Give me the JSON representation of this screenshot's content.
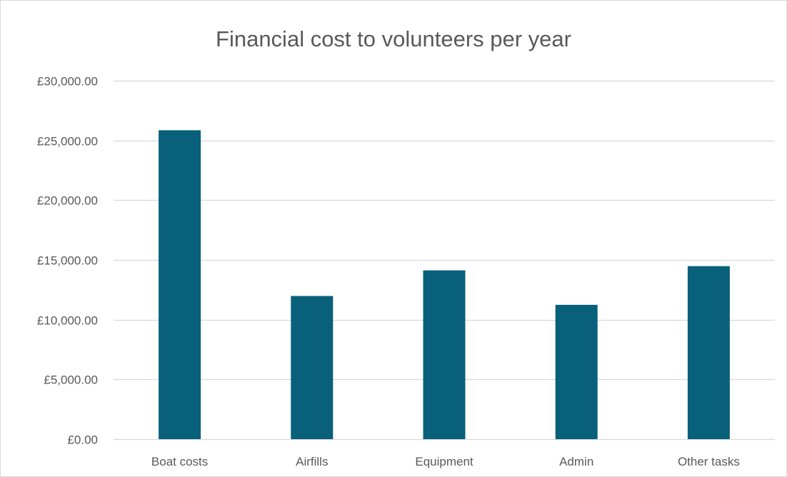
{
  "chart_data": {
    "type": "bar",
    "title": "Financial cost to volunteers per year",
    "categories": [
      "Boat costs",
      "Airfills",
      "Equipment",
      "Admin",
      "Other tasks"
    ],
    "values": [
      25850,
      11980,
      14130,
      11240,
      14480
    ],
    "ylim": [
      0,
      30000
    ],
    "y_ticks": [
      0,
      5000,
      10000,
      15000,
      20000,
      25000,
      30000
    ],
    "y_tick_labels": [
      "£0.00",
      "£5,000.00",
      "£10,000.00",
      "£15,000.00",
      "£20,000.00",
      "£25,000.00",
      "£30,000.00"
    ],
    "grid": true,
    "legend": "none",
    "bar_color": "#08607a",
    "gridline_color": "#d9d9d9",
    "text_color": "#595959"
  }
}
